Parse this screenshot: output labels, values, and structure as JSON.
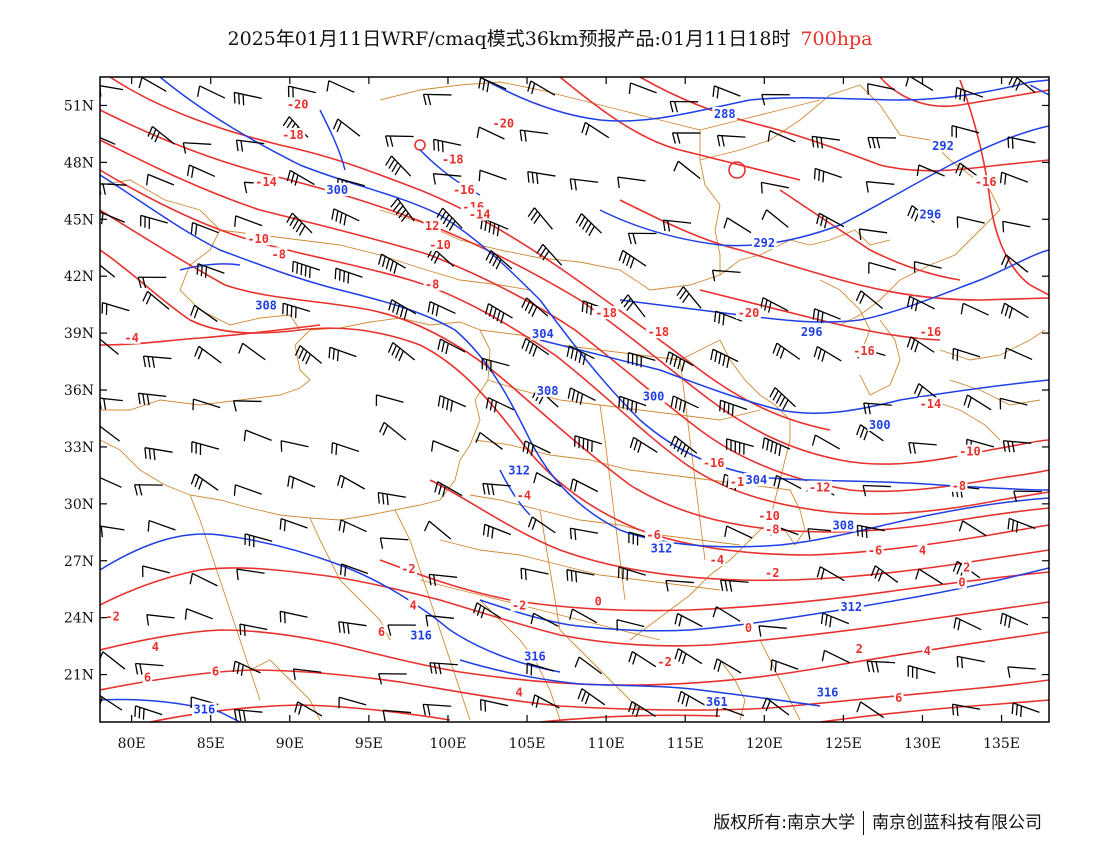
{
  "title": {
    "main": "2025年01月11日WRF/cmaq模式36km预报产品:01月11日18时",
    "level": "700hpa"
  },
  "footer": {
    "copyright": "版权所有:南京大学",
    "company": "南京创蓝科技有限公司"
  },
  "colors": {
    "temperature": "#e8312d",
    "height": "#1f3fe6",
    "border": "#d08a35",
    "wind": "#000000",
    "frame": "#000000"
  },
  "map": {
    "lon_range": [
      78,
      138
    ],
    "lat_range": [
      18.5,
      52.5
    ],
    "x_ticks": [
      "80E",
      "85E",
      "90E",
      "95E",
      "100E",
      "105E",
      "110E",
      "115E",
      "120E",
      "125E",
      "130E",
      "135E"
    ],
    "y_ticks": [
      "51N",
      "48N",
      "45N",
      "42N",
      "39N",
      "36N",
      "33N",
      "30N",
      "27N",
      "24N",
      "21N"
    ],
    "temperature_labels": [
      {
        "text": "-20",
        "lon": 90.5,
        "lat": 51.0
      },
      {
        "text": "-20",
        "lon": 103.5,
        "lat": 50.0
      },
      {
        "text": "-18",
        "lon": 90.2,
        "lat": 49.4
      },
      {
        "text": "-18",
        "lon": 100.3,
        "lat": 48.1
      },
      {
        "text": "-16",
        "lon": 101.0,
        "lat": 46.5
      },
      {
        "text": "-16",
        "lon": 101.6,
        "lat": 45.6
      },
      {
        "text": "-16",
        "lon": 134.0,
        "lat": 46.9
      },
      {
        "text": "-14",
        "lon": 88.5,
        "lat": 46.9
      },
      {
        "text": "-14",
        "lon": 102.0,
        "lat": 45.2
      },
      {
        "text": "12",
        "lon": 99.0,
        "lat": 44.6
      },
      {
        "text": "-10",
        "lon": 99.5,
        "lat": 43.6
      },
      {
        "text": "-10",
        "lon": 88.0,
        "lat": 43.9
      },
      {
        "text": "-8",
        "lon": 89.3,
        "lat": 43.1
      },
      {
        "text": "-8",
        "lon": 99.0,
        "lat": 41.5
      },
      {
        "text": "-18",
        "lon": 110.0,
        "lat": 40.0
      },
      {
        "text": "-18",
        "lon": 113.3,
        "lat": 39.0
      },
      {
        "text": "-20",
        "lon": 119.0,
        "lat": 40.0
      },
      {
        "text": "-16",
        "lon": 130.5,
        "lat": 39.0
      },
      {
        "text": "-16",
        "lon": 126.3,
        "lat": 38.0
      },
      {
        "text": "-4",
        "lon": 80.0,
        "lat": 38.7
      },
      {
        "text": "-14",
        "lon": 130.5,
        "lat": 35.2
      },
      {
        "text": "-16",
        "lon": 116.8,
        "lat": 32.1
      },
      {
        "text": "-14",
        "lon": 118.5,
        "lat": 31.1
      },
      {
        "text": "-12",
        "lon": 123.5,
        "lat": 30.8
      },
      {
        "text": "-10",
        "lon": 133.0,
        "lat": 32.7
      },
      {
        "text": "-10",
        "lon": 120.3,
        "lat": 29.3
      },
      {
        "text": "-8",
        "lon": 132.3,
        "lat": 30.9
      },
      {
        "text": "-8",
        "lon": 120.5,
        "lat": 28.6
      },
      {
        "text": "-6",
        "lon": 113.0,
        "lat": 28.3
      },
      {
        "text": "-6",
        "lon": 127.0,
        "lat": 27.5
      },
      {
        "text": "-4",
        "lon": 104.8,
        "lat": 30.4
      },
      {
        "text": "-4",
        "lon": 117.0,
        "lat": 27.0
      },
      {
        "text": "4",
        "lon": 130.0,
        "lat": 27.5
      },
      {
        "text": "-2",
        "lon": 97.5,
        "lat": 26.5
      },
      {
        "text": "-2",
        "lon": 120.5,
        "lat": 26.3
      },
      {
        "text": "2",
        "lon": 132.8,
        "lat": 26.6
      },
      {
        "text": "0",
        "lon": 132.5,
        "lat": 25.8
      },
      {
        "text": "-2",
        "lon": 104.5,
        "lat": 24.6
      },
      {
        "text": "0",
        "lon": 109.5,
        "lat": 24.8
      },
      {
        "text": "-2",
        "lon": 78.8,
        "lat": 24.0
      },
      {
        "text": "0",
        "lon": 119.0,
        "lat": 23.4
      },
      {
        "text": "4",
        "lon": 97.8,
        "lat": 24.6
      },
      {
        "text": "6",
        "lon": 95.8,
        "lat": 23.2
      },
      {
        "text": "4",
        "lon": 81.5,
        "lat": 22.4
      },
      {
        "text": "2",
        "lon": 126.0,
        "lat": 22.3
      },
      {
        "text": "4",
        "lon": 130.3,
        "lat": 22.2
      },
      {
        "text": "-2",
        "lon": 113.7,
        "lat": 21.6
      },
      {
        "text": "6",
        "lon": 81.0,
        "lat": 20.8
      },
      {
        "text": "6",
        "lon": 85.3,
        "lat": 21.1
      },
      {
        "text": "4",
        "lon": 104.5,
        "lat": 20.0
      },
      {
        "text": "6",
        "lon": 128.5,
        "lat": 19.7
      }
    ],
    "height_labels": [
      {
        "text": "288",
        "lon": 117.5,
        "lat": 50.5
      },
      {
        "text": "292",
        "lon": 131.3,
        "lat": 48.8
      },
      {
        "text": "300",
        "lon": 93.0,
        "lat": 46.5
      },
      {
        "text": "296",
        "lon": 130.5,
        "lat": 45.2
      },
      {
        "text": "292",
        "lon": 120.0,
        "lat": 43.7
      },
      {
        "text": "308",
        "lon": 88.5,
        "lat": 40.4
      },
      {
        "text": "304",
        "lon": 106.0,
        "lat": 38.9
      },
      {
        "text": "296",
        "lon": 123.0,
        "lat": 39.0
      },
      {
        "text": "300",
        "lon": 113.0,
        "lat": 35.6
      },
      {
        "text": "300",
        "lon": 127.3,
        "lat": 34.1
      },
      {
        "text": "308",
        "lon": 106.3,
        "lat": 35.9
      },
      {
        "text": "312",
        "lon": 104.5,
        "lat": 31.7
      },
      {
        "text": "304",
        "lon": 119.5,
        "lat": 31.2
      },
      {
        "text": "308",
        "lon": 125.0,
        "lat": 28.8
      },
      {
        "text": "312",
        "lon": 113.5,
        "lat": 27.6
      },
      {
        "text": "312",
        "lon": 125.5,
        "lat": 24.5
      },
      {
        "text": "316",
        "lon": 98.3,
        "lat": 23.0
      },
      {
        "text": "316",
        "lon": 105.5,
        "lat": 21.9
      },
      {
        "text": "316",
        "lon": 124.0,
        "lat": 20.0
      },
      {
        "text": "316",
        "lon": 84.6,
        "lat": 19.1
      },
      {
        "text": "361",
        "lon": 117.0,
        "lat": 19.5
      }
    ]
  }
}
